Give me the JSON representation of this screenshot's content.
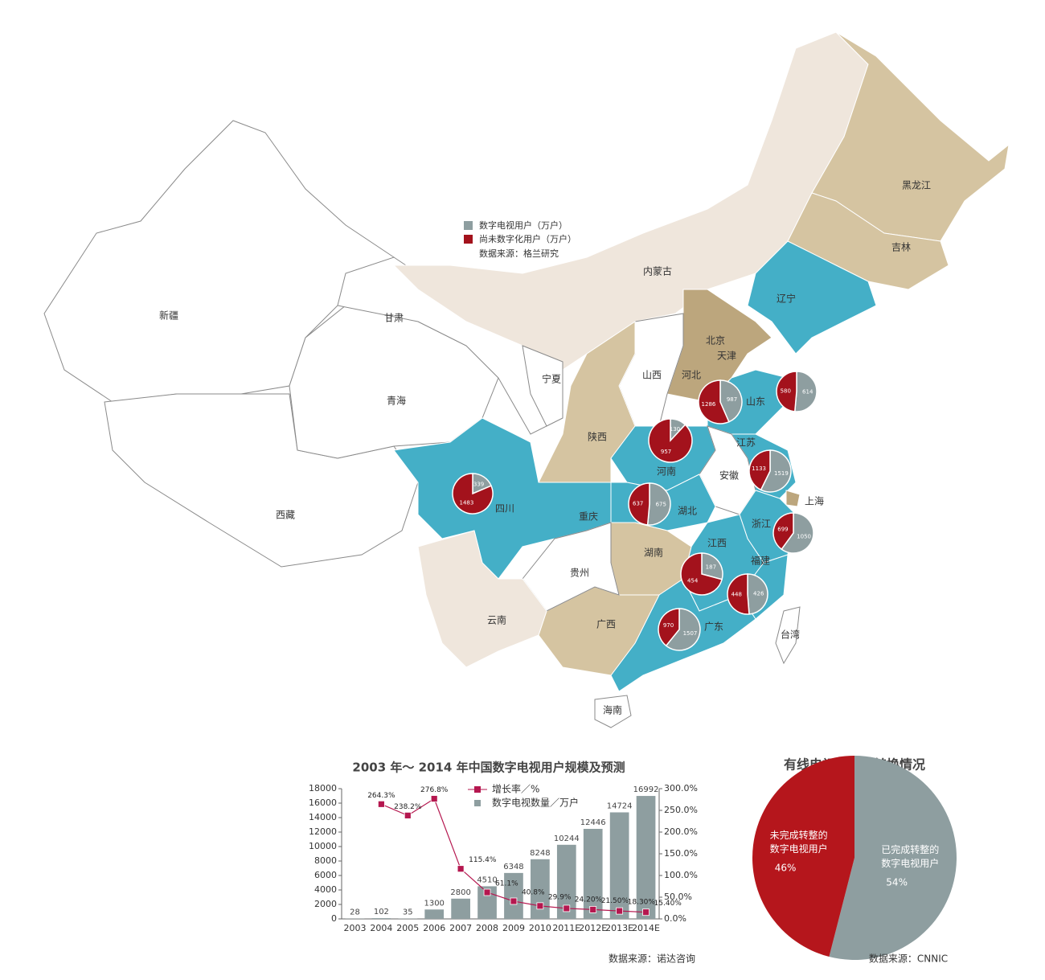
{
  "map": {
    "series": [
      {
        "name": "数字电视用户（万户）",
        "color": "#8e9ea0"
      },
      {
        "name": "尚未数字化用户（万户）",
        "color": "#a3121c"
      }
    ],
    "source": "数据来源：格兰研究",
    "regions": [
      "新疆",
      "西藏",
      "青海",
      "甘肃",
      "内蒙古",
      "黑龙江",
      "吉林",
      "辽宁",
      "北京",
      "天津",
      "河北",
      "山西",
      "宁夏",
      "陕西",
      "山东",
      "河南",
      "江苏",
      "安徽",
      "上海",
      "四川",
      "重庆",
      "湖北",
      "浙江",
      "江西",
      "湖南",
      "福建",
      "广东",
      "广西",
      "贵州",
      "云南",
      "台湾",
      "海南"
    ],
    "pies": [
      [
        339,
        1483
      ],
      [
        130,
        957
      ],
      [
        987,
        1286
      ],
      [
        614,
        580
      ],
      [
        1519,
        1133
      ],
      [
        675,
        637
      ],
      [
        1050,
        699
      ],
      [
        187,
        454
      ],
      [
        426,
        448
      ],
      [
        1507,
        970
      ]
    ]
  },
  "chart_data": [
    {
      "type": "bar",
      "title": "2003 年～ 2014 年中国数字电视用户规模及预测",
      "categories": [
        "2003",
        "2004",
        "2005",
        "2006",
        "2007",
        "2008",
        "2009",
        "2010",
        "2011E",
        "2012E",
        "2013E",
        "2014E"
      ],
      "series": [
        {
          "name": "增长率／%",
          "type": "line",
          "axis": "y2",
          "color": "#b5174f",
          "values": [
            null,
            264.3,
            238.2,
            276.8,
            115.4,
            61.1,
            40.8,
            29.9,
            24.2,
            21.5,
            18.3,
            15.4
          ],
          "value_labels": [
            null,
            "264.3%",
            "238.2%",
            "276.8%",
            "115.4%",
            "61.1%",
            "40.8%",
            "29.9%",
            "24.20%",
            "21.50%",
            "18.30%",
            "15.40%"
          ]
        },
        {
          "name": "数字电视数量／万户",
          "type": "bar",
          "color": "#8e9ea0",
          "values": [
            28,
            102,
            35,
            1300,
            2800,
            4510,
            6348,
            8248,
            10244,
            12446,
            14724,
            16992
          ]
        }
      ],
      "ylim": [
        0,
        18000
      ],
      "yticks": [
        0,
        2000,
        4000,
        6000,
        8000,
        10000,
        12000,
        14000,
        16000,
        18000
      ],
      "y2lim": [
        0,
        300
      ],
      "y2ticks": [
        {
          "value": 0,
          "label": "0.0%"
        },
        {
          "value": 50,
          "label": "50.0%"
        },
        {
          "value": 100,
          "label": "100.0%"
        },
        {
          "value": 150,
          "label": "150.0%"
        },
        {
          "value": 200,
          "label": "200.0%"
        },
        {
          "value": 250,
          "label": "250.0%"
        },
        {
          "value": 300,
          "label": "300.0%"
        }
      ],
      "source": "数据来源：诺达咨询"
    },
    {
      "type": "pie",
      "title": "有线电视数字化转换情况",
      "categories": [
        "已完成转整的\n数字电视用户",
        "未完成转整的\n数字电视用户"
      ],
      "values": [
        54,
        46
      ],
      "value_labels": [
        "54%",
        "46%"
      ],
      "colors": [
        "#8e9ea0",
        "#b5161c"
      ],
      "source": "数据来源：CNNIC"
    }
  ]
}
